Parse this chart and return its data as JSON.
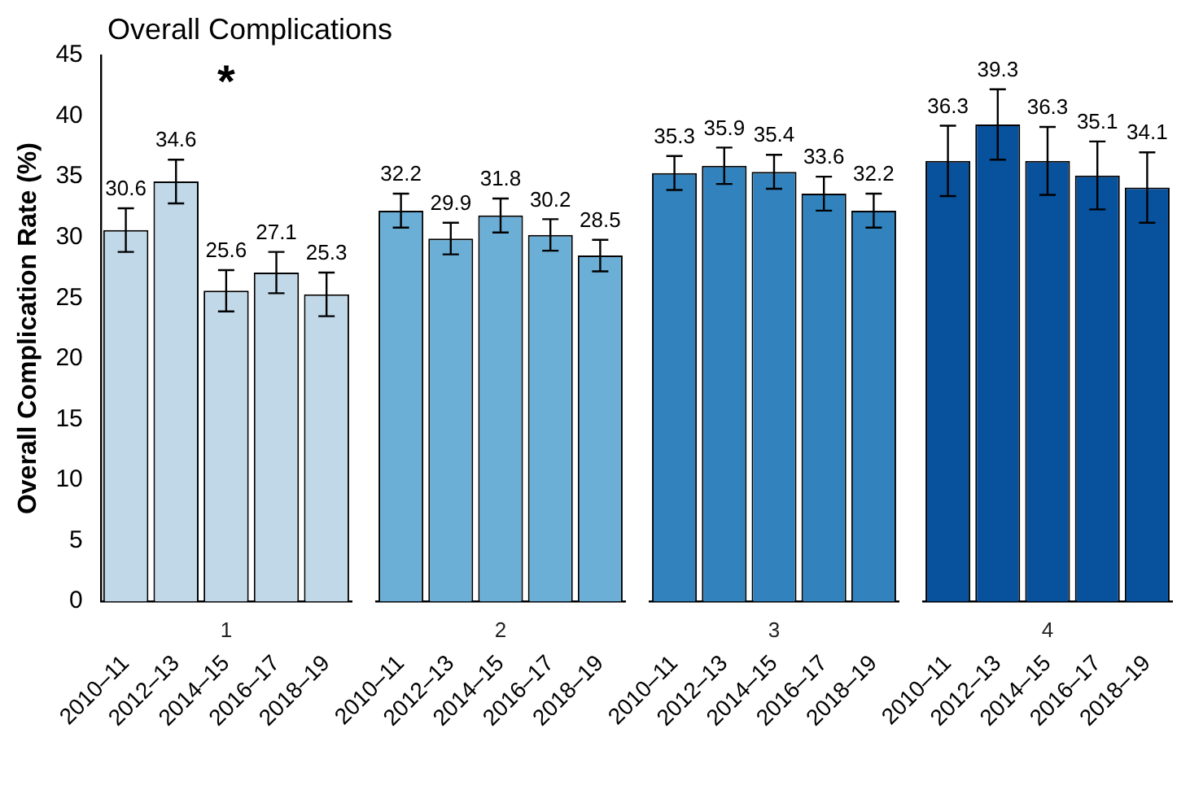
{
  "chart_data": [
    {
      "type": "bar",
      "title": "Overall Complications",
      "ylabel": "Overall Complication Rate (%)",
      "xlabel": "1",
      "categories": [
        "2010–11",
        "2012–13",
        "2014–15",
        "2016–17",
        "2018–19"
      ],
      "values": [
        30.6,
        34.6,
        25.6,
        27.1,
        25.3
      ],
      "errors": [
        1.8,
        1.8,
        1.7,
        1.7,
        1.8
      ],
      "color": "#c0d8e8",
      "data_labels": true,
      "ylim": [
        0,
        45
      ],
      "yticks": [
        0,
        5,
        10,
        15,
        20,
        25,
        30,
        35,
        40,
        45
      ],
      "grid": false,
      "annotations": [
        "*"
      ]
    },
    {
      "type": "bar",
      "xlabel": "2",
      "categories": [
        "2010–11",
        "2012–13",
        "2014–15",
        "2016–17",
        "2018–19"
      ],
      "values": [
        32.2,
        29.9,
        31.8,
        30.2,
        28.5
      ],
      "errors": [
        1.4,
        1.3,
        1.4,
        1.3,
        1.3
      ],
      "color": "#6baed6",
      "data_labels": true,
      "ylim": [
        0,
        45
      ],
      "yticks": [
        0,
        5,
        10,
        15,
        20,
        25,
        30,
        35,
        40,
        45
      ],
      "grid": false,
      "tick_labels": "x"
    },
    {
      "type": "bar",
      "xlabel": "3",
      "categories": [
        "2010–11",
        "2012–13",
        "2014–15",
        "2016–17",
        "2018–19"
      ],
      "values": [
        35.3,
        35.9,
        35.4,
        33.6,
        32.2
      ],
      "errors": [
        1.4,
        1.5,
        1.4,
        1.4,
        1.4
      ],
      "color": "#3182bd",
      "data_labels": true,
      "ylim": [
        0,
        45
      ],
      "yticks": [
        0,
        5,
        10,
        15,
        20,
        25,
        30,
        35,
        40,
        45
      ],
      "grid": false,
      "tick_labels": "x"
    },
    {
      "type": "bar",
      "xlabel": "4",
      "categories": [
        "2010–11",
        "2012–13",
        "2014–15",
        "2016–17",
        "2018–19"
      ],
      "values": [
        36.3,
        39.3,
        36.3,
        35.1,
        34.1
      ],
      "errors": [
        2.9,
        2.9,
        2.8,
        2.8,
        2.9
      ],
      "color": "#08519c",
      "data_labels": true,
      "ylim": [
        0,
        45
      ],
      "yticks": [
        0,
        5,
        10,
        15,
        20,
        25,
        30,
        35,
        40,
        45
      ],
      "grid": false,
      "tick_labels": "x"
    }
  ]
}
